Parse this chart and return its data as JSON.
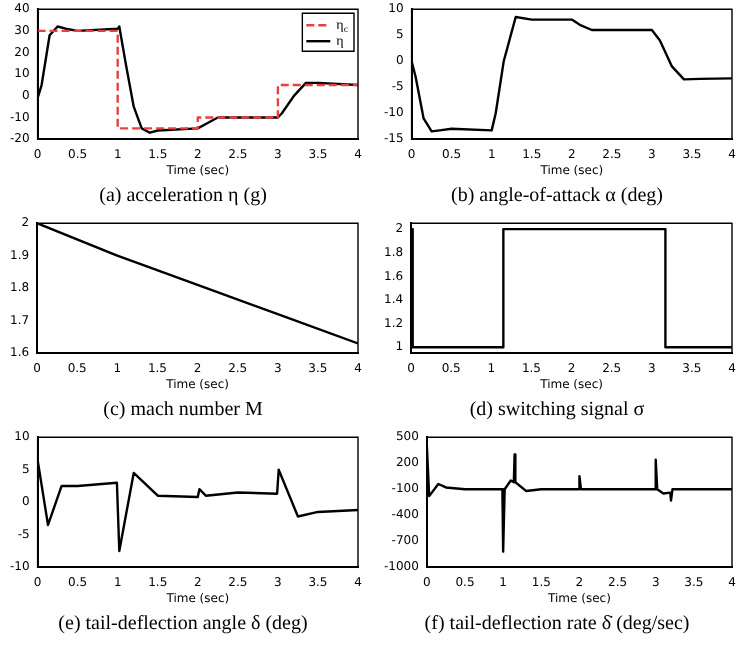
{
  "chart_data": [
    {
      "type": "line",
      "title": "(a) acceleration η (g)",
      "xlabel": "Time (sec)",
      "xlim": [
        0,
        4
      ],
      "xticks": [
        0,
        0.5,
        1,
        1.5,
        2,
        2.5,
        3,
        3.5,
        4
      ],
      "ylim": [
        -20,
        40
      ],
      "yticks": [
        -20,
        -10,
        0,
        10,
        20,
        30,
        40
      ],
      "legend": "top right",
      "series": [
        {
          "name": "η$_{c}$",
          "type": "step",
          "color": "#e8403f",
          "line_style": "dashed",
          "x": [
            0,
            1,
            2,
            3,
            4
          ],
          "values": [
            30,
            -15,
            -10,
            5,
            5
          ]
        },
        {
          "name": "η",
          "color": "#000000",
          "line_style": "solid",
          "x": [
            0,
            0.05,
            0.15,
            0.25,
            0.35,
            0.5,
            1.0,
            1.02,
            1.1,
            1.2,
            1.3,
            1.4,
            1.5,
            2.0,
            2.1,
            2.25,
            2.5,
            3.0,
            3.05,
            3.2,
            3.35,
            3.5,
            4
          ],
          "values": [
            -1,
            5,
            28,
            32,
            31,
            30,
            31,
            32,
            15,
            -5,
            -15,
            -17,
            -16,
            -15,
            -13,
            -10,
            -10,
            -10,
            -8,
            0,
            6,
            6,
            5
          ]
        }
      ]
    },
    {
      "type": "line",
      "title": "(b) angle-of-attack α (deg)",
      "xlabel": "Time (sec)",
      "xlim": [
        0,
        4
      ],
      "xticks": [
        0,
        0.5,
        1,
        1.5,
        2,
        2.5,
        3,
        3.5,
        4
      ],
      "ylim": [
        -15,
        10
      ],
      "yticks": [
        -15,
        -10,
        -5,
        0,
        5,
        10
      ],
      "series": [
        {
          "color": "#000000",
          "x": [
            0,
            0.05,
            0.15,
            0.25,
            0.35,
            0.5,
            1.0,
            1.05,
            1.15,
            1.3,
            1.5,
            2.0,
            2.1,
            2.25,
            2.5,
            3.0,
            3.1,
            3.25,
            3.4,
            3.6,
            4
          ],
          "values": [
            0,
            -3,
            -11,
            -13.5,
            -13.3,
            -13,
            -13.3,
            -10,
            0,
            8.5,
            8,
            8,
            7,
            6,
            6,
            6,
            4,
            -1,
            -3.5,
            -3.4,
            -3.3
          ]
        }
      ]
    },
    {
      "type": "line",
      "title": "(c) mach number M",
      "xlabel": "Time (sec)",
      "xlim": [
        0,
        4
      ],
      "xticks": [
        0,
        0.5,
        1,
        1.5,
        2,
        2.5,
        3,
        3.5,
        4
      ],
      "ylim": [
        1.6,
        2
      ],
      "yticks": [
        1.6,
        1.7,
        1.8,
        1.9,
        2
      ],
      "series": [
        {
          "color": "#000000",
          "x": [
            0,
            1,
            2,
            3,
            4
          ],
          "values": [
            2,
            1.9,
            1.81,
            1.72,
            1.63
          ]
        }
      ]
    },
    {
      "type": "line",
      "title": "(d) switching signal σ",
      "xlabel": "Time (sec)",
      "xlim": [
        0,
        4
      ],
      "xticks": [
        0,
        0.5,
        1,
        1.5,
        2,
        2.5,
        3,
        3.5,
        4
      ],
      "ylim": [
        0.95,
        2.05
      ],
      "yticks": [
        1,
        1.2,
        1.4,
        1.6,
        1.8,
        2
      ],
      "series": [
        {
          "type": "step",
          "color": "#000000",
          "x": [
            0,
            0.02,
            1.15,
            3.17,
            4
          ],
          "values": [
            2,
            1,
            2,
            1,
            1
          ]
        }
      ]
    },
    {
      "type": "line",
      "title": "(e) tail-deflection angle δ (deg)",
      "xlabel": "Time (sec)",
      "xlim": [
        0,
        4
      ],
      "xticks": [
        0,
        0.5,
        1,
        1.5,
        2,
        2.5,
        3,
        3.5,
        4
      ],
      "ylim": [
        -10,
        10
      ],
      "yticks": [
        -10,
        -5,
        0,
        5,
        10
      ],
      "series": [
        {
          "color": "#000000",
          "x": [
            0,
            0.13,
            0.3,
            0.5,
            0.99,
            1.02,
            1.2,
            1.5,
            2.0,
            2.02,
            2.1,
            2.5,
            2.99,
            3.01,
            3.25,
            3.5,
            4
          ],
          "values": [
            6.5,
            -3.5,
            2.5,
            2.5,
            3,
            -7.5,
            4.5,
            1,
            0.8,
            2,
            1,
            1.5,
            1.3,
            5,
            -2.2,
            -1.5,
            -1.2
          ]
        }
      ]
    },
    {
      "type": "line",
      "title": "(f) tail-deflection rate δ̇ (deg/sec)",
      "xlabel": "Time (sec)",
      "xlim": [
        0,
        4
      ],
      "xticks": [
        0,
        0.5,
        1,
        1.5,
        2,
        2.5,
        3,
        3.5,
        4
      ],
      "ylim": [
        -1000,
        500
      ],
      "yticks": [
        -1000,
        -700,
        -400,
        -100,
        200,
        500
      ],
      "series": [
        {
          "color": "#000000",
          "x": [
            0,
            0.03,
            0.15,
            0.25,
            0.5,
            0.99,
            1.0,
            1.02,
            1.1,
            1.14,
            1.15,
            1.16,
            1.3,
            1.5,
            1.99,
            2.0,
            2.02,
            2.5,
            2.99,
            3.0,
            3.02,
            3.1,
            3.19,
            3.2,
            3.22,
            4
          ],
          "values": [
            400,
            -180,
            -40,
            -80,
            -100,
            -100,
            -820,
            -100,
            0,
            -20,
            300,
            -20,
            -120,
            -100,
            -100,
            50,
            -100,
            -100,
            -100,
            240,
            -100,
            -150,
            -140,
            -230,
            -100,
            -100
          ]
        }
      ]
    }
  ]
}
